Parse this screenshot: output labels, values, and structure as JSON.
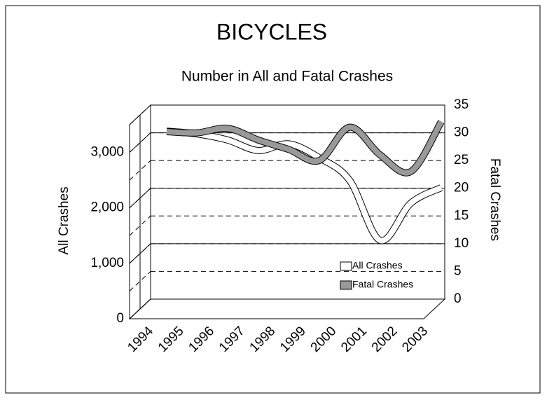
{
  "chart_data": {
    "type": "line",
    "title": "BICYCLES",
    "subtitle": "Number in All and Fatal Crashes",
    "y_label": "All Crashes",
    "y2_label": "Fatal Crashes",
    "categories": [
      "1994",
      "1995",
      "1996",
      "1997",
      "1998",
      "1999",
      "2000",
      "2001",
      "2002",
      "2003"
    ],
    "series": [
      {
        "name": "All Crashes",
        "color": "#ffffff",
        "values": [
          3030,
          2980,
          2870,
          2680,
          2800,
          2550,
          2140,
          1060,
          1730,
          2010
        ]
      },
      {
        "name": "Fatal Crashes",
        "color": "#999999",
        "axis": "y2",
        "values": [
          30.2,
          30,
          30.8,
          28.7,
          27,
          25,
          31,
          26,
          23,
          32
        ]
      }
    ],
    "ylim": [
      0,
      3500
    ],
    "yticks": [
      0,
      {
        "value": 1000,
        "label": "1,000"
      },
      {
        "value": 2000,
        "label": "2,000"
      },
      {
        "value": 3000,
        "label": "3,000"
      }
    ],
    "y2lim": [
      0,
      35
    ],
    "y2ticks": [
      0,
      5,
      10,
      15,
      20,
      25,
      30,
      35
    ],
    "grid": true,
    "legend": "lower right"
  }
}
